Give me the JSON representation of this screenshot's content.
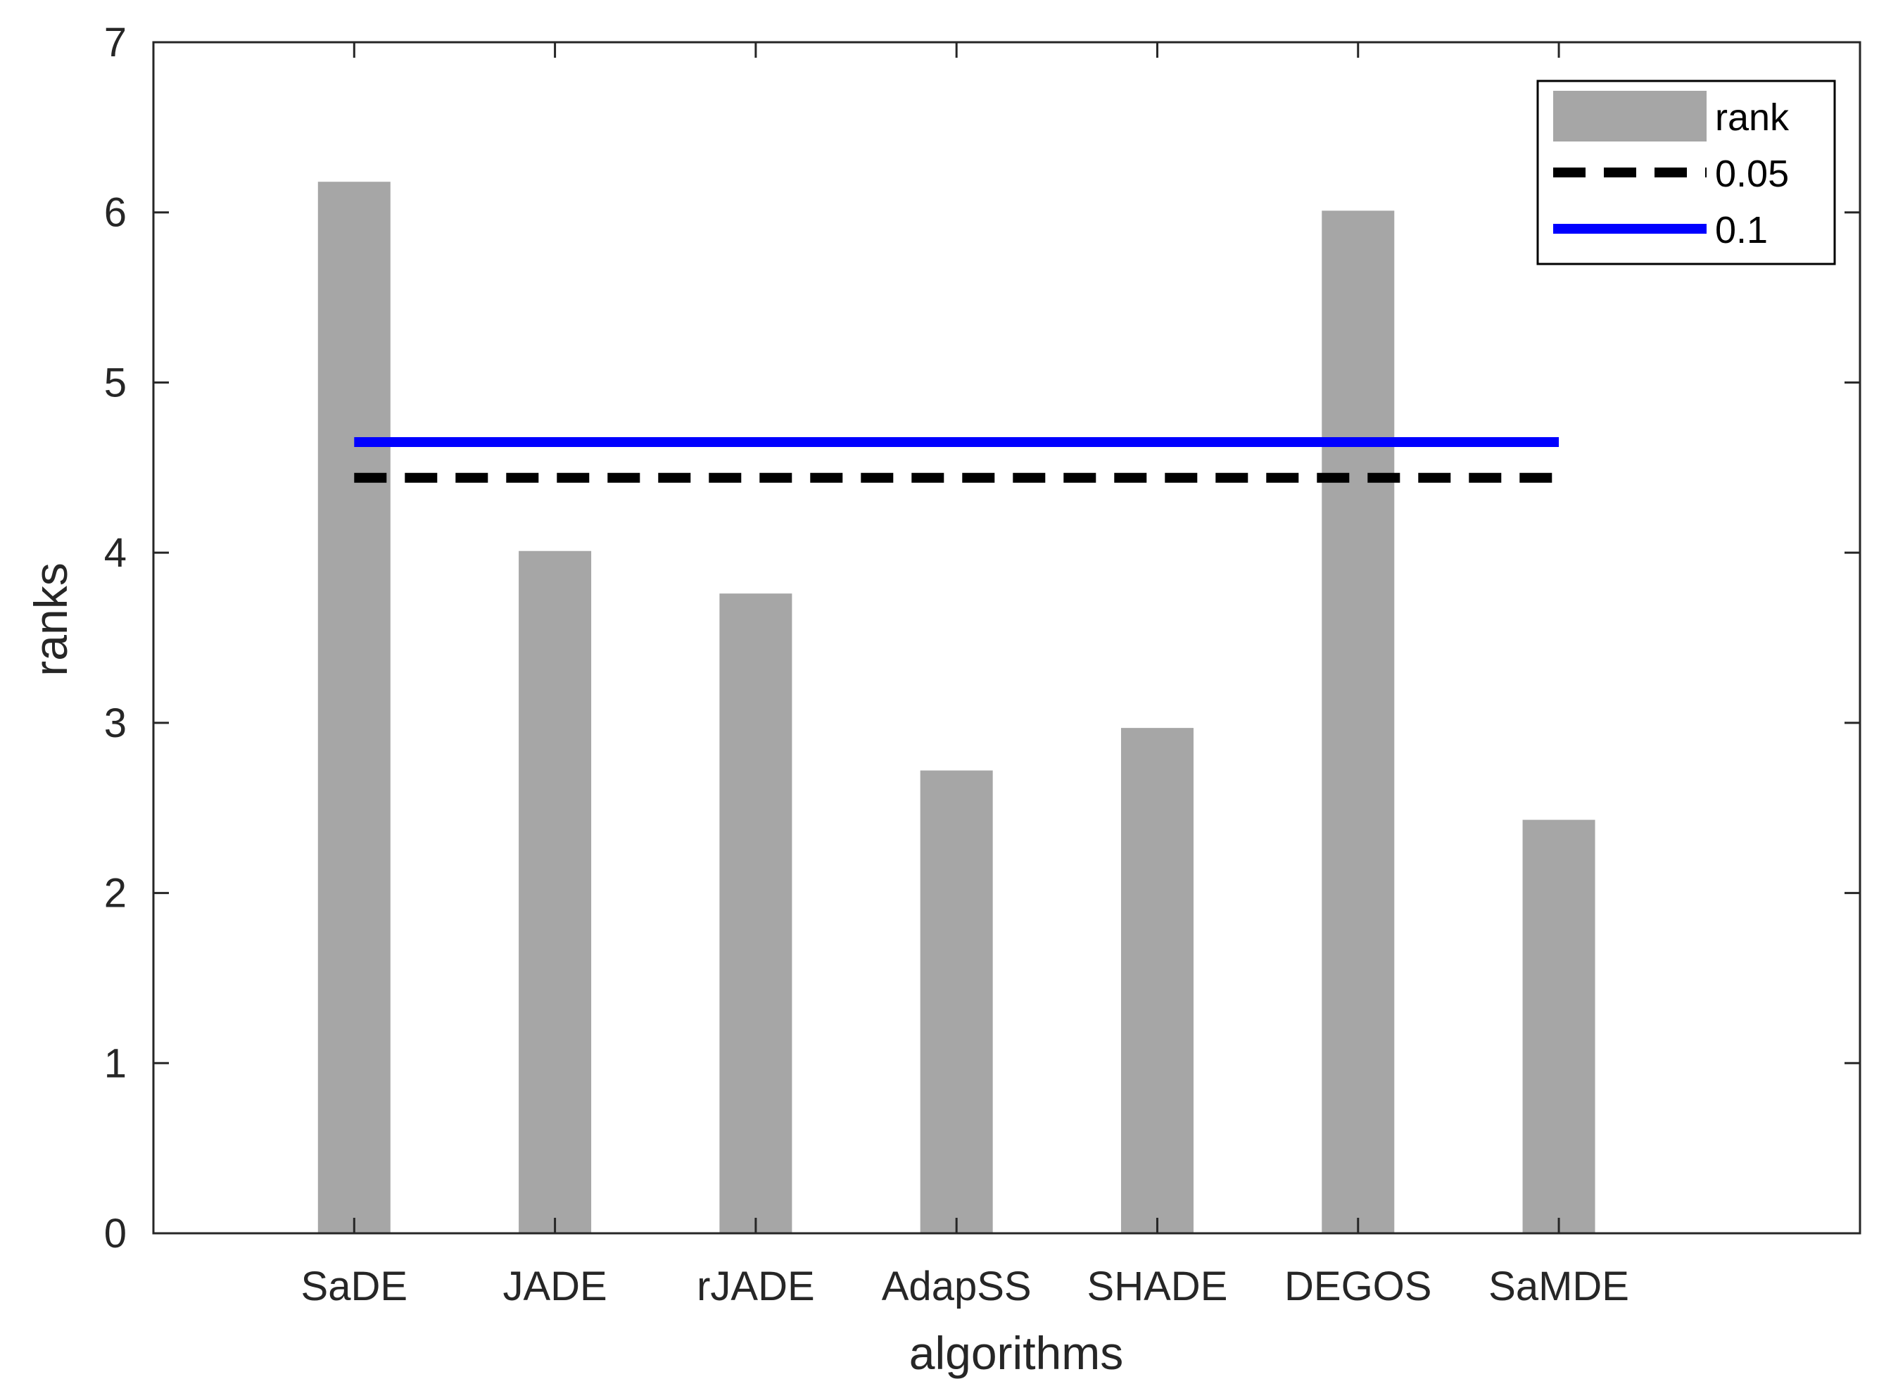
{
  "chart_data": {
    "type": "bar",
    "xlabel": "algorithms",
    "ylabel": "ranks",
    "ylim": [
      0,
      7
    ],
    "yticks": [
      0,
      1,
      2,
      3,
      4,
      5,
      6,
      7
    ],
    "categories": [
      "SaDE",
      "JADE",
      "rJADE",
      "AdapSS",
      "SHADE",
      "DEGOS",
      "SaMDE"
    ],
    "series": [
      {
        "name": "rank",
        "kind": "bar",
        "color": "#a6a6a6",
        "values": [
          6.18,
          4.01,
          3.76,
          2.72,
          2.97,
          6.01,
          2.43
        ]
      }
    ],
    "reference_lines": [
      {
        "name": "0.05",
        "value": 4.44,
        "color": "#000000",
        "style": "dashed",
        "from_category": "SaDE",
        "to_category": "SaMDE"
      },
      {
        "name": "0.1",
        "value": 4.65,
        "color": "#0000ff",
        "style": "solid",
        "from_category": "SaDE",
        "to_category": "SaMDE"
      }
    ],
    "legend": {
      "position": "top-right",
      "entries": [
        "rank",
        "0.05",
        "0.1"
      ]
    },
    "grid": false,
    "box": true
  }
}
